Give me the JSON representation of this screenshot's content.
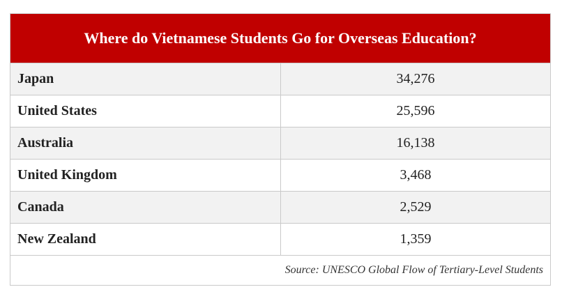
{
  "table": {
    "title": "Where do Vietnamese Students Go for Overseas Education?",
    "header_color": "#c00000",
    "rows": [
      {
        "country": "Japan",
        "students": "34,276"
      },
      {
        "country": "United States",
        "students": "25,596"
      },
      {
        "country": "Australia",
        "students": "16,138"
      },
      {
        "country": "United Kingdom",
        "students": "3,468"
      },
      {
        "country": "Canada",
        "students": "2,529"
      },
      {
        "country": "New Zealand",
        "students": "1,359"
      }
    ],
    "source": "Source: UNESCO Global Flow of Tertiary-Level Students"
  }
}
